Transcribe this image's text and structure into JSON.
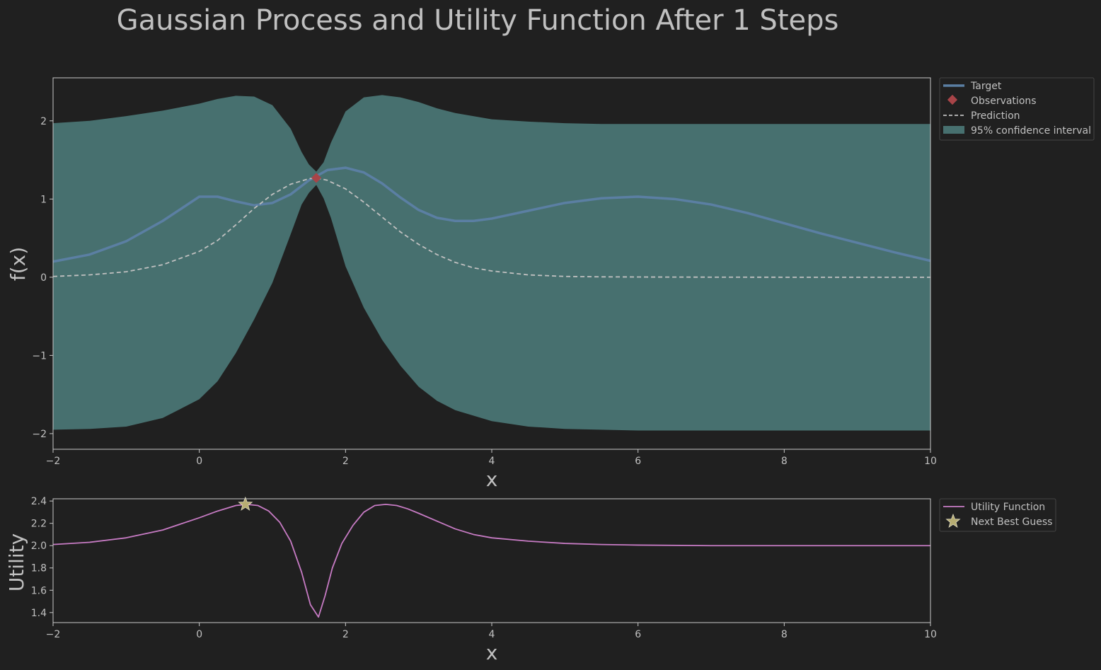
{
  "title": "Gaussian Process and Utility Function After 1 Steps",
  "colors": {
    "background": "#202020",
    "text": "#c0c0c0",
    "axis": "#c8c8c8",
    "target": "#5b7fa3",
    "observation": "#a84448",
    "prediction": "#c0c0c0",
    "confidence": "#47706f",
    "utility": "#c77bc4",
    "next_best": "#b7ad72"
  },
  "chart_data": [
    {
      "type": "line",
      "name": "gp-panel",
      "xlabel": "x",
      "ylabel": "f(x)",
      "xlim": [
        -2,
        10
      ],
      "ylim": [
        -2.2,
        2.55
      ],
      "xticks": [
        -2,
        0,
        2,
        4,
        6,
        8,
        10
      ],
      "yticks": [
        -2,
        -1,
        0,
        1,
        2
      ],
      "legend_position": "outside-top-right",
      "legend": [
        "Target",
        "Observations",
        "Prediction",
        "95% confidence interval"
      ],
      "series": [
        {
          "name": "Target",
          "x": [
            -2,
            -1.5,
            -1,
            -0.5,
            0,
            0.25,
            0.5,
            0.75,
            1,
            1.25,
            1.5,
            1.75,
            2,
            2.25,
            2.5,
            2.75,
            3,
            3.25,
            3.5,
            3.75,
            4,
            4.5,
            5,
            5.5,
            6,
            6.5,
            7,
            7.5,
            8,
            8.5,
            9,
            9.5,
            10
          ],
          "y": [
            0.2,
            0.29,
            0.46,
            0.72,
            1.03,
            1.03,
            0.97,
            0.92,
            0.95,
            1.06,
            1.24,
            1.37,
            1.4,
            1.34,
            1.2,
            1.02,
            0.86,
            0.76,
            0.72,
            0.72,
            0.75,
            0.85,
            0.95,
            1.01,
            1.03,
            1.0,
            0.93,
            0.82,
            0.69,
            0.56,
            0.44,
            0.32,
            0.21
          ]
        },
        {
          "name": "Prediction",
          "x": [
            -2,
            -1.5,
            -1,
            -0.5,
            0,
            0.25,
            0.5,
            0.75,
            1,
            1.25,
            1.5,
            1.6,
            1.75,
            2,
            2.25,
            2.5,
            2.75,
            3,
            3.25,
            3.5,
            3.75,
            4,
            4.5,
            5,
            5.5,
            6,
            7,
            8,
            9,
            10
          ],
          "y": [
            0.01,
            0.03,
            0.07,
            0.16,
            0.33,
            0.47,
            0.67,
            0.88,
            1.06,
            1.19,
            1.26,
            1.27,
            1.24,
            1.13,
            0.96,
            0.77,
            0.58,
            0.42,
            0.29,
            0.19,
            0.12,
            0.08,
            0.03,
            0.01,
            0.005,
            0.003,
            0.001,
            0.0,
            0.0,
            0.0
          ]
        }
      ],
      "confidence_interval": {
        "name": "95% confidence interval",
        "x": [
          -2,
          -1.5,
          -1,
          -0.5,
          0,
          0.25,
          0.5,
          0.75,
          1,
          1.25,
          1.4,
          1.5,
          1.6,
          1.7,
          1.8,
          2,
          2.25,
          2.5,
          2.75,
          3,
          3.25,
          3.5,
          4,
          4.5,
          5,
          5.5,
          6,
          7,
          8,
          9,
          10
        ],
        "upper": [
          1.97,
          2.0,
          2.06,
          2.13,
          2.22,
          2.28,
          2.32,
          2.31,
          2.2,
          1.9,
          1.6,
          1.44,
          1.35,
          1.47,
          1.72,
          2.12,
          2.3,
          2.33,
          2.3,
          2.24,
          2.16,
          2.1,
          2.02,
          1.99,
          1.97,
          1.96,
          1.96,
          1.96,
          1.96,
          1.96,
          1.96
        ],
        "lower": [
          -1.95,
          -1.94,
          -1.91,
          -1.8,
          -1.56,
          -1.33,
          -0.97,
          -0.54,
          -0.07,
          0.55,
          0.93,
          1.08,
          1.18,
          1.01,
          0.76,
          0.14,
          -0.39,
          -0.8,
          -1.13,
          -1.4,
          -1.58,
          -1.7,
          -1.84,
          -1.91,
          -1.94,
          -1.95,
          -1.96,
          -1.96,
          -1.96,
          -1.96,
          -1.96
        ]
      },
      "observations": [
        {
          "x": 1.6,
          "y": 1.27
        }
      ]
    },
    {
      "type": "line",
      "name": "utility-panel",
      "xlabel": "x",
      "ylabel": "Utility",
      "xlim": [
        -2,
        10
      ],
      "ylim": [
        1.31,
        2.42
      ],
      "xticks": [
        -2,
        0,
        2,
        4,
        6,
        8,
        10
      ],
      "yticks": [
        1.4,
        1.6,
        1.8,
        2.0,
        2.2,
        2.4
      ],
      "legend_position": "outside-top-right",
      "legend": [
        "Utility Function",
        "Next Best Guess"
      ],
      "series": [
        {
          "name": "Utility Function",
          "x": [
            -2,
            -1.5,
            -1,
            -0.5,
            0,
            0.25,
            0.5,
            0.65,
            0.8,
            0.95,
            1.1,
            1.25,
            1.4,
            1.52,
            1.63,
            1.72,
            1.82,
            1.95,
            2.1,
            2.25,
            2.4,
            2.55,
            2.7,
            2.85,
            3.0,
            3.25,
            3.5,
            3.75,
            4.0,
            4.5,
            5.0,
            5.5,
            6.0,
            7.0,
            8.0,
            9.0,
            10.0
          ],
          "y": [
            2.01,
            2.03,
            2.07,
            2.14,
            2.25,
            2.31,
            2.36,
            2.37,
            2.36,
            2.31,
            2.21,
            2.04,
            1.76,
            1.47,
            1.36,
            1.55,
            1.8,
            2.02,
            2.18,
            2.3,
            2.36,
            2.37,
            2.36,
            2.33,
            2.29,
            2.22,
            2.15,
            2.1,
            2.07,
            2.04,
            2.02,
            2.01,
            2.005,
            2.0,
            2.0,
            2.0,
            2.0
          ]
        }
      ],
      "next_best_guess": {
        "x": 0.63,
        "y": 2.37
      }
    }
  ]
}
